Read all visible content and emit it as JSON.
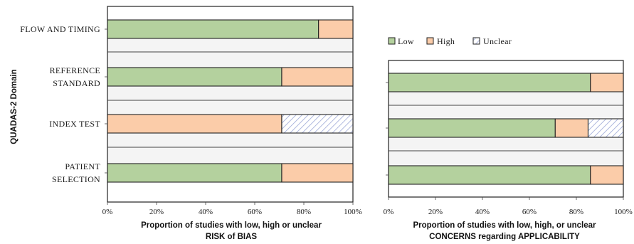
{
  "y_axis_title": "QUADAS-2 Domain",
  "legend": [
    {
      "label": "Low",
      "color": "#b4d19e"
    },
    {
      "label": "High",
      "color": "#fbcca9"
    },
    {
      "label": "Unclear",
      "pattern": "hatch",
      "color": "#ffffff"
    }
  ],
  "colors": {
    "low": "#b4d19e",
    "high": "#fbcca9",
    "unclear": "#ffffff",
    "hatch": "#9aa6d6",
    "border": "#222222"
  },
  "chart_data": [
    {
      "type": "bar",
      "orientation": "horizontal",
      "stacked": true,
      "xlabel": [
        "Proportion of studies with low, high or unclear",
        "RISK of BIAS"
      ],
      "xlim": [
        0,
        100
      ],
      "xticks": [
        "0%",
        "20%",
        "40%",
        "60%",
        "80%",
        "100%"
      ],
      "categories": [
        "FLOW AND TIMING",
        "REFERENCE STANDARD",
        "INDEX TEST",
        "PATIENT SELECTION"
      ],
      "category_labels": [
        [
          "FLOW AND TIMING"
        ],
        [
          "REFERENCE",
          "STANDARD"
        ],
        [
          "INDEX TEST"
        ],
        [
          "PATIENT",
          "SELECTION"
        ]
      ],
      "series": [
        {
          "name": "Low",
          "values": [
            86,
            71,
            0,
            71
          ]
        },
        {
          "name": "High",
          "values": [
            14,
            29,
            71,
            29
          ]
        },
        {
          "name": "Unclear",
          "values": [
            0,
            0,
            29,
            0
          ]
        }
      ]
    },
    {
      "type": "bar",
      "orientation": "horizontal",
      "stacked": true,
      "xlabel": [
        "Proportion of studies with low, high, or unclear",
        "CONCERNS regarding APPLICABILITY"
      ],
      "xlim": [
        0,
        100
      ],
      "xticks": [
        "0%",
        "20%",
        "40%",
        "60%",
        "80%",
        "100%"
      ],
      "categories": [
        "REFERENCE STANDARD",
        "INDEX TEST",
        "PATIENT SELECTION"
      ],
      "series": [
        {
          "name": "Low",
          "values": [
            86,
            71,
            86
          ]
        },
        {
          "name": "High",
          "values": [
            14,
            14,
            14
          ]
        },
        {
          "name": "Unclear",
          "values": [
            0,
            15,
            0
          ]
        }
      ]
    }
  ]
}
